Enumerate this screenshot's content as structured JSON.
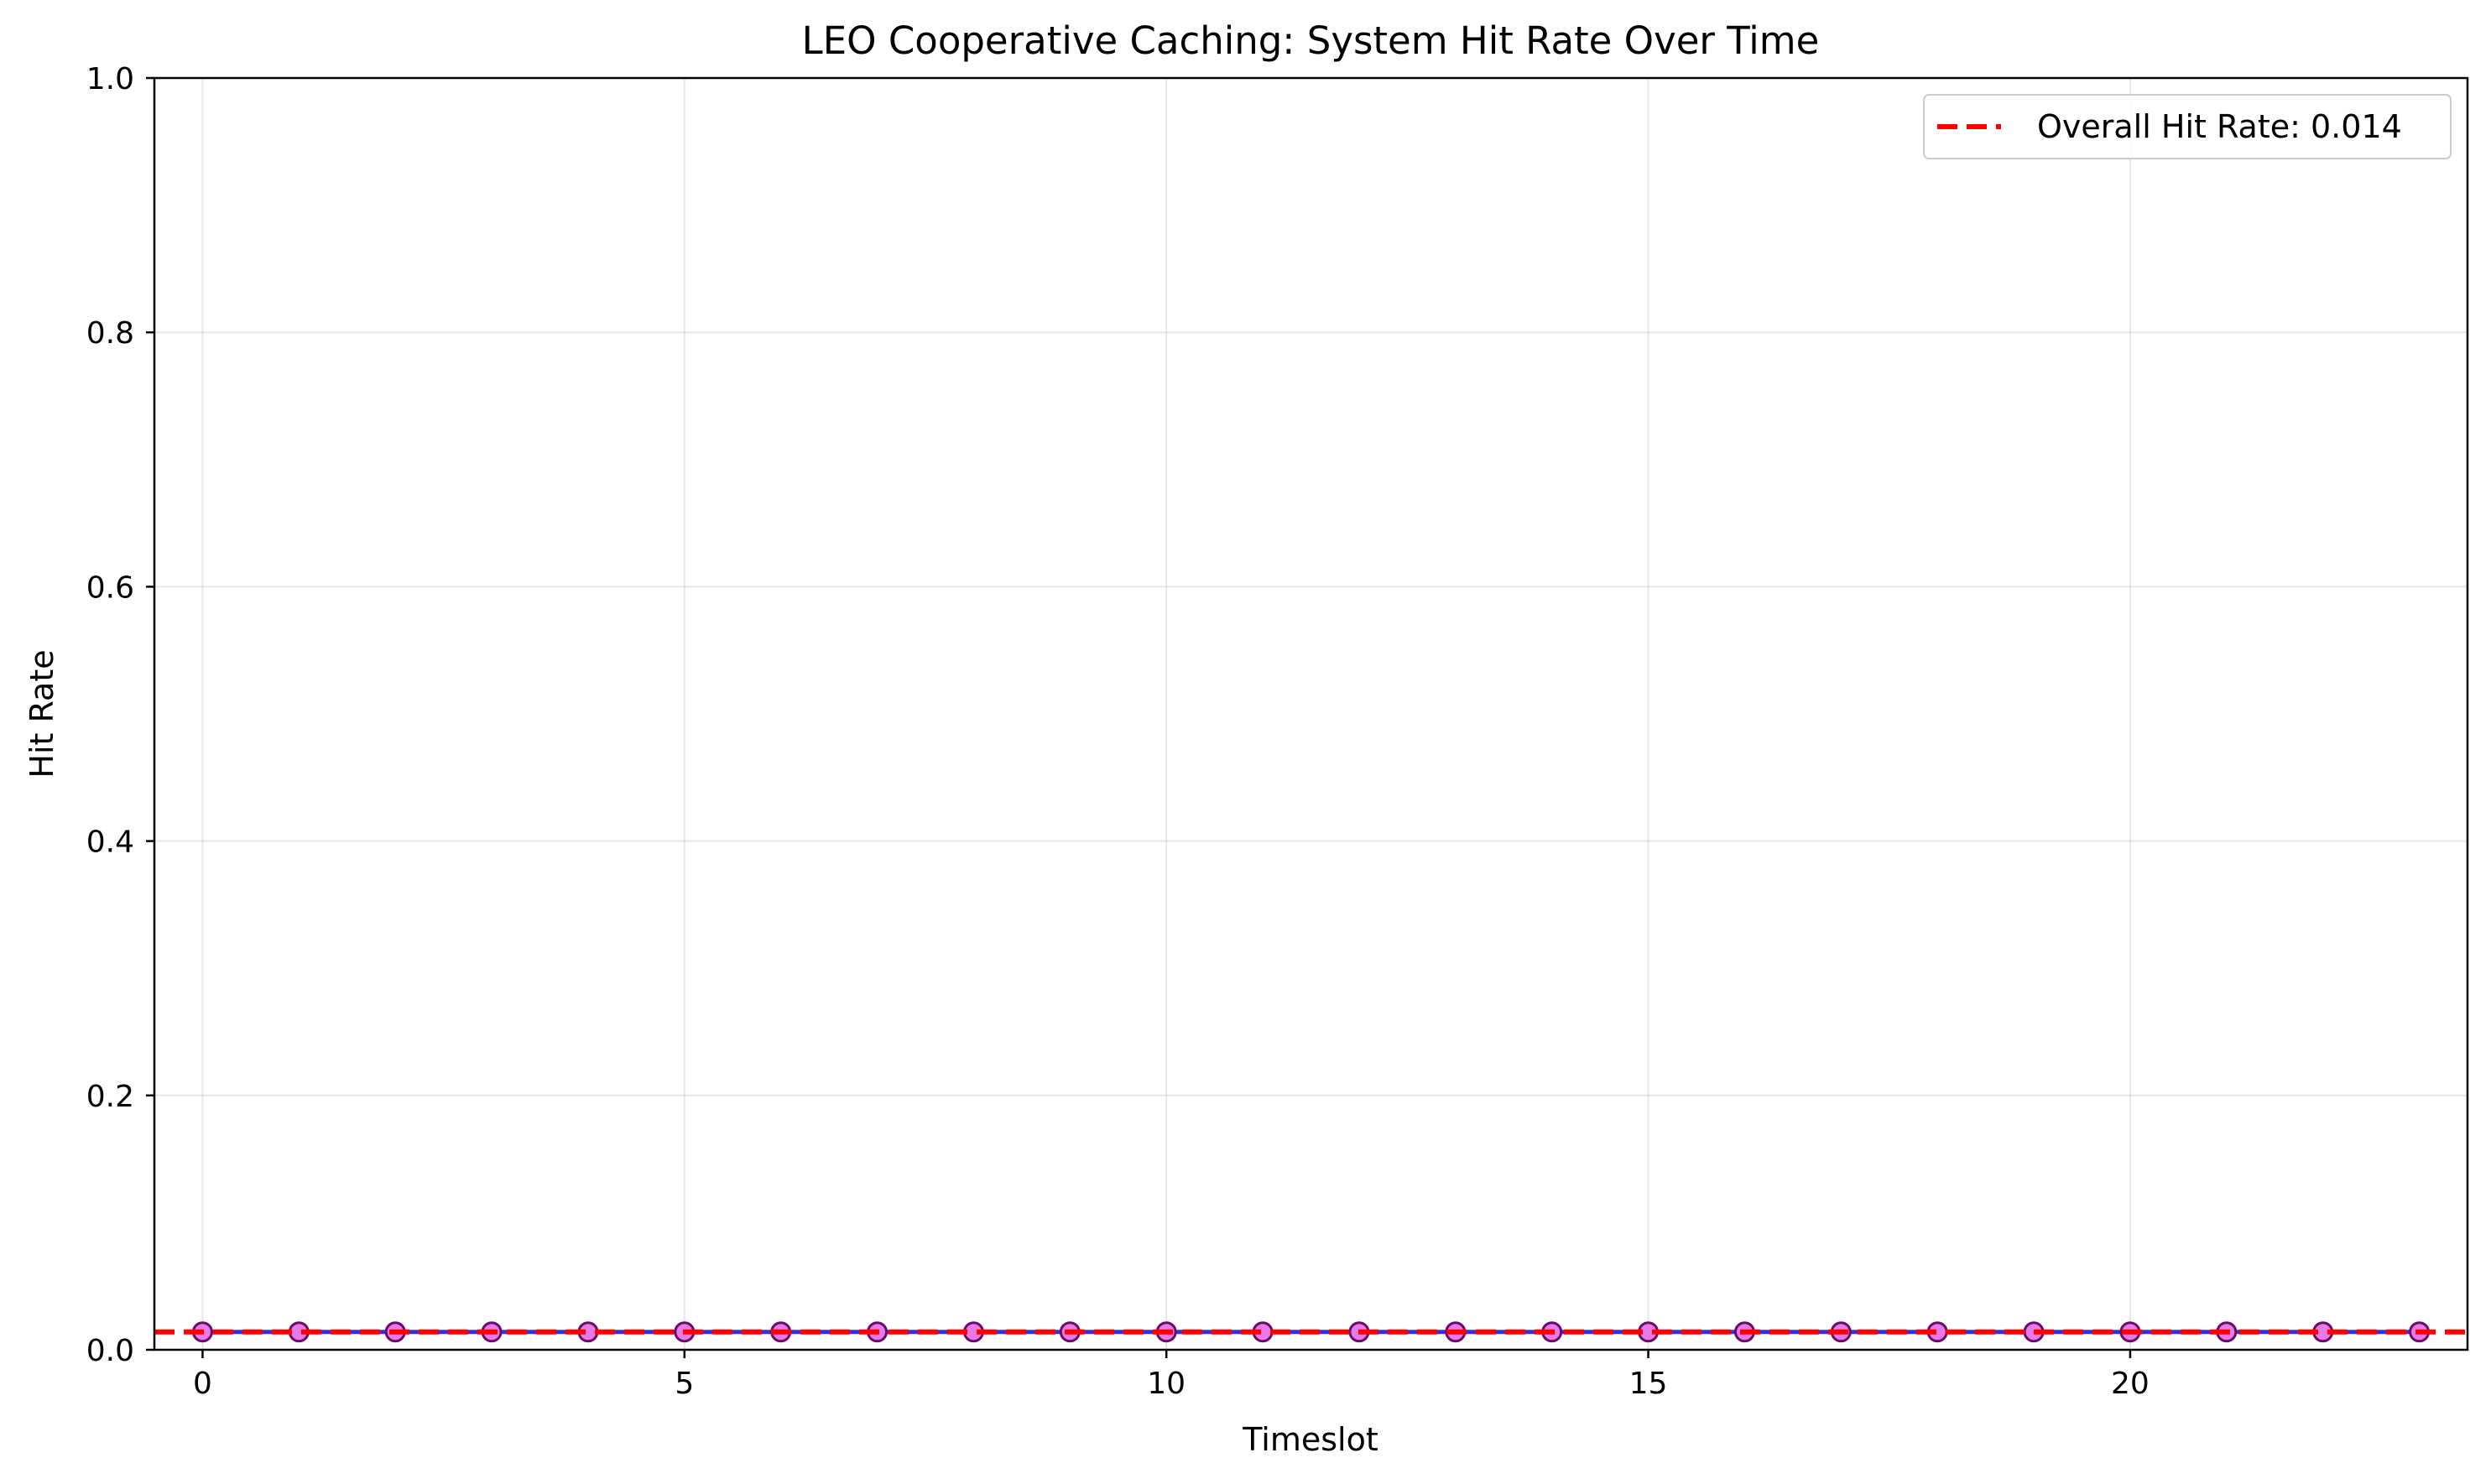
{
  "chart_data": {
    "type": "line",
    "title": "LEO Cooperative Caching: System Hit Rate Over Time",
    "xlabel": "Timeslot",
    "ylabel": "Hit Rate",
    "xlim": [
      -0.5,
      23.5
    ],
    "ylim": [
      0,
      1.0
    ],
    "xticks": [
      0,
      5,
      10,
      15,
      20
    ],
    "xtick_labels": [
      "0",
      "5",
      "10",
      "15",
      "20"
    ],
    "yticks": [
      0.0,
      0.2,
      0.4,
      0.6,
      0.8,
      1.0
    ],
    "ytick_labels": [
      "0.0",
      "0.2",
      "0.4",
      "0.6",
      "0.8",
      "1.0"
    ],
    "grid": true,
    "legend_position": "top-right",
    "x": [
      0,
      1,
      2,
      3,
      4,
      5,
      6,
      7,
      8,
      9,
      10,
      11,
      12,
      13,
      14,
      15,
      16,
      17,
      18,
      19,
      20,
      21,
      22,
      23
    ],
    "series": [
      {
        "values": [
          0.014,
          0.014,
          0.014,
          0.014,
          0.014,
          0.014,
          0.014,
          0.014,
          0.014,
          0.014,
          0.014,
          0.014,
          0.014,
          0.014,
          0.014,
          0.014,
          0.014,
          0.014,
          0.014,
          0.014,
          0.014,
          0.014,
          0.014,
          0.014
        ],
        "line_color": "#3a2fd6",
        "marker_face": "#e87ae8",
        "marker_edge": "#6a0a6a"
      }
    ],
    "reference_lines": [
      {
        "name": "Overall Hit Rate: 0.014",
        "y": 0.014,
        "color": "#ff0000",
        "style": "dashed"
      }
    ]
  }
}
